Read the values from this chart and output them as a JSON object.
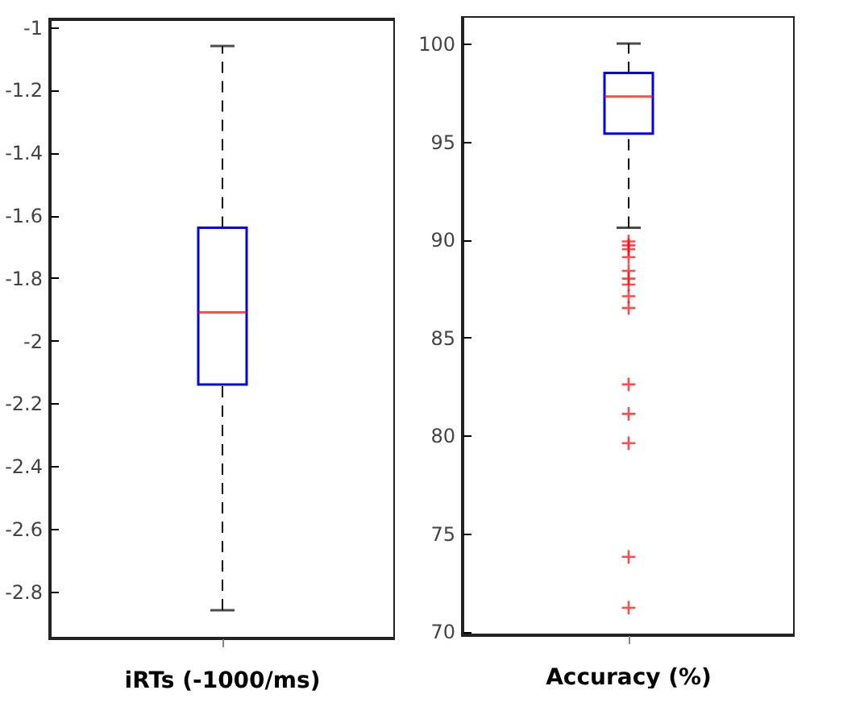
{
  "chart_data": [
    {
      "type": "box",
      "categories": [
        "iRTs (-1000/ms)"
      ],
      "ylim": [
        -2.95,
        -0.975
      ],
      "yticks": [
        -2.8,
        -2.6,
        -2.4,
        -2.2,
        -2,
        -1.8,
        -1.6,
        -1.4,
        -1.2,
        -1
      ],
      "grid": false,
      "series": [
        {
          "color": "#0000ff",
          "boxes": [
            {
              "low": -2.86,
              "q1": -2.14,
              "median": -1.91,
              "q3": -1.64,
              "high": -1.06
            }
          ]
        }
      ]
    },
    {
      "type": "box",
      "categories": [
        "Accuracy (%)"
      ],
      "ylim": [
        69.8,
        101.4
      ],
      "yticks": [
        70,
        75,
        80,
        85,
        90,
        95,
        100
      ],
      "grid": false,
      "series": [
        {
          "color": "#0000ff",
          "boxes": [
            {
              "low": 90.6,
              "q1": 95.4,
              "median": 97.3,
              "q3": 98.5,
              "high": 100,
              "outliers": [
                89.9,
                89.7,
                89.5,
                89.1,
                88.4,
                88.0,
                87.7,
                87.1,
                86.5,
                82.6,
                81.1,
                79.6,
                73.8,
                71.2
              ]
            }
          ]
        }
      ]
    }
  ]
}
